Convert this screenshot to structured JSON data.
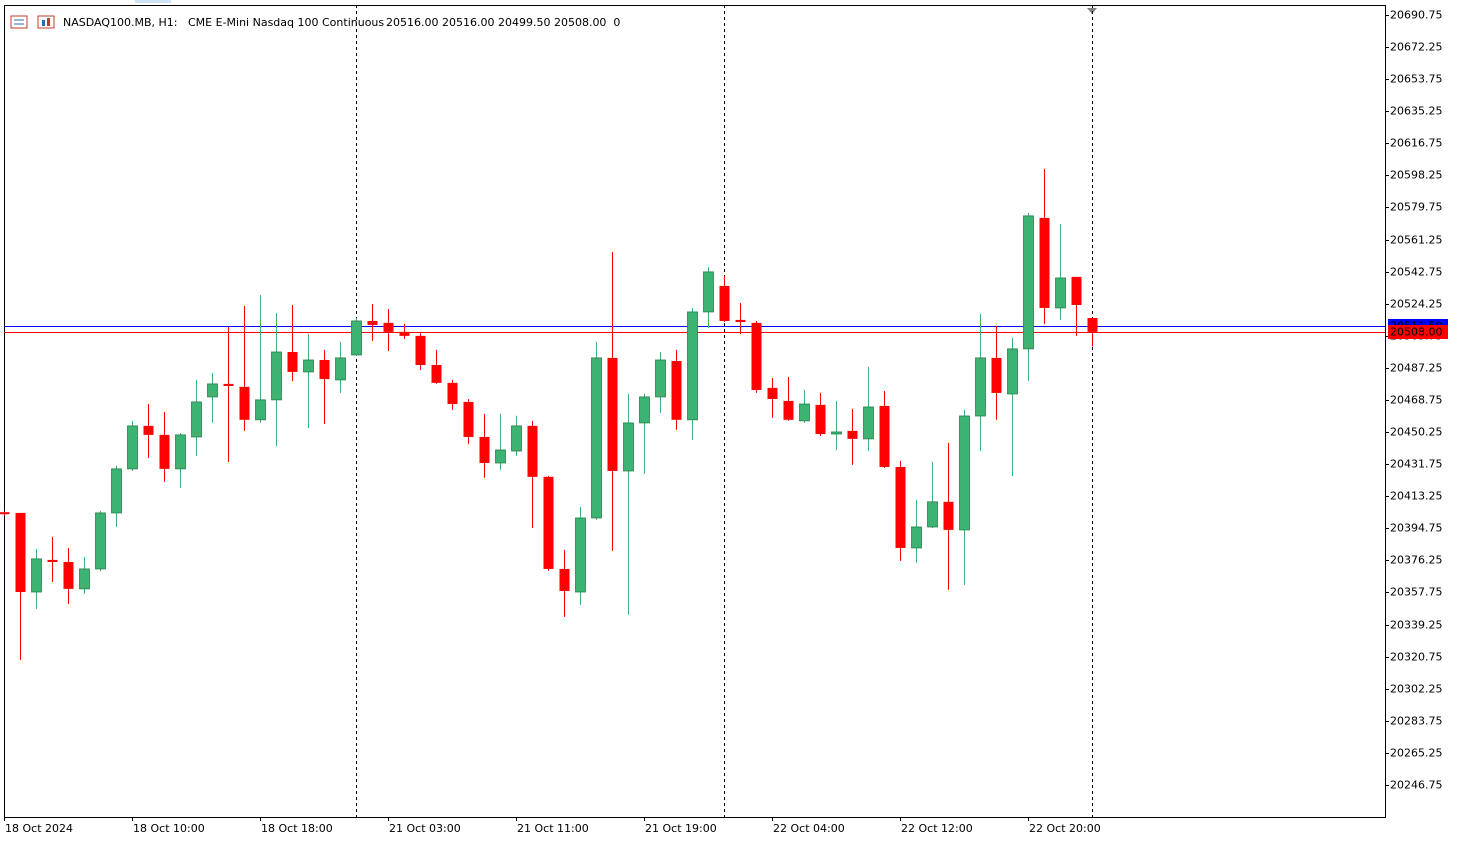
{
  "chart_data": {
    "type": "candlestick",
    "symbol": "NASDAQ100.MB, H1:",
    "description": "CME E-Mini Nasdaq 100 Continuous",
    "info": "20516.00 20516.00 20499.50 20508.00  0",
    "categories": [
      "18 Oct 2024",
      null,
      null,
      null,
      null,
      null,
      null,
      null,
      "18 Oct 10:00",
      null,
      null,
      null,
      null,
      null,
      null,
      null,
      "18 Oct 18:00",
      null,
      null,
      null,
      null,
      null,
      null,
      null,
      "21 Oct 03:00",
      null,
      null,
      null,
      null,
      null,
      null,
      null,
      "21 Oct 11:00",
      null,
      null,
      null,
      null,
      null,
      null,
      null,
      "21 Oct 19:00",
      null,
      null,
      null,
      null,
      null,
      null,
      null,
      "22 Oct 04:00",
      null,
      null,
      null,
      null,
      null,
      null,
      null,
      "22 Oct 12:00",
      null,
      null,
      null,
      null,
      null,
      null,
      null,
      "22 Oct 20:00",
      null,
      null,
      null,
      null
    ],
    "open": [
      20404,
      20403.6,
      20358,
      20376.5,
      20375.3,
      20359.8,
      20371.3,
      20403.6,
      20429,
      20453.8,
      20448.6,
      20429,
      20447.4,
      20470.5,
      20478,
      20476.3,
      20457.3,
      20468.8,
      20496.4,
      20484.9,
      20491.8,
      20480.3,
      20494.7,
      20514.3,
      20513.2,
      20508,
      20505.7,
      20488.9,
      20478.6,
      20467.6,
      20447.4,
      20432.4,
      20439.3,
      20453.8,
      20424.4,
      20371.3,
      20358,
      20400.7,
      20493,
      20427.8,
      20455.5,
      20470.5,
      20491.2,
      20457.3,
      20519.5,
      20534.5,
      20514.9,
      20513.2,
      20475.7,
      20468.2,
      20456.7,
      20465.9,
      20449.1,
      20450.9,
      20446.3,
      20465.3,
      20430.1,
      20383.4,
      20395.5,
      20410,
      20393.8,
      20459.5,
      20493,
      20472.2,
      20498.2,
      20573.7,
      20521.8,
      20539.7,
      20516
    ],
    "high": [
      20404.5,
      20403.6,
      20382.8,
      20389.8,
      20383.4,
      20378.2,
      20404.8,
      20430.7,
      20456.7,
      20466.4,
      20461.8,
      20449.7,
      20480.3,
      20484.3,
      20510.9,
      20523,
      20529.3,
      20518.9,
      20523.5,
      20506.8,
      20497.6,
      20502.2,
      20516,
      20524.1,
      20521.2,
      20512.6,
      20507.4,
      20497.6,
      20480.3,
      20469.3,
      20460.7,
      20460.7,
      20459.6,
      20456.7,
      20425,
      20382.3,
      20407.1,
      20502.2,
      20554.1,
      20472.2,
      20472.2,
      20496.4,
      20497.6,
      20521.8,
      20545.4,
      20540.2,
      20524.7,
      20514.3,
      20481.4,
      20482,
      20474.5,
      20472.8,
      20468.2,
      20463.6,
      20487.8,
      20474,
      20433.6,
      20411.1,
      20433,
      20443.9,
      20463,
      20518.3,
      20511.4,
      20504.5,
      20576.6,
      20602,
      20570.2,
      20539.7,
      20516
    ],
    "low": [
      20402,
      20318.8,
      20348.2,
      20363.8,
      20351.1,
      20356.9,
      20370,
      20395.5,
      20427.8,
      20435.3,
      20421.5,
      20418,
      20436.5,
      20455.5,
      20433,
      20450.9,
      20455.5,
      20442.2,
      20479.7,
      20452.6,
      20454.9,
      20472.8,
      20494.1,
      20502.8,
      20497,
      20503.9,
      20486,
      20478,
      20463,
      20443.4,
      20423.8,
      20428.4,
      20436.5,
      20394.9,
      20370.2,
      20343.6,
      20350.5,
      20399.6,
      20381.7,
      20344.8,
      20426.1,
      20461.2,
      20451.5,
      20445.7,
      20510.3,
      20513.7,
      20506.8,
      20472.8,
      20458.4,
      20456.7,
      20455.5,
      20448,
      20439.9,
      20431.3,
      20439.3,
      20429.6,
      20375.9,
      20374.8,
      20394.9,
      20359.2,
      20362.1,
      20439.3,
      20457.3,
      20424.9,
      20479.7,
      20512.6,
      20514.9,
      20505.7,
      20499.5
    ],
    "close": [
      20403,
      20358,
      20377.1,
      20375.3,
      20359.8,
      20371.3,
      20403.6,
      20429,
      20453.8,
      20448.6,
      20429,
      20448.6,
      20467.6,
      20478,
      20476.8,
      20457.3,
      20468.8,
      20496.4,
      20484.9,
      20491.8,
      20480.8,
      20493,
      20514.3,
      20512,
      20508,
      20505.7,
      20488.9,
      20478.6,
      20466.4,
      20447.4,
      20432.4,
      20439.9,
      20453.8,
      20424.4,
      20371.3,
      20358.6,
      20400.7,
      20493,
      20427.8,
      20455.5,
      20470.5,
      20491.8,
      20457.3,
      20519.5,
      20542.6,
      20514.3,
      20513.7,
      20474.5,
      20469.3,
      20457.3,
      20466.4,
      20449.1,
      20450.3,
      20446.3,
      20464.7,
      20430.1,
      20383.4,
      20395.5,
      20410,
      20393.8,
      20459.5,
      20493,
      20472.8,
      20498.2,
      20574.9,
      20521.8,
      20539.1,
      20523.5,
      20508
    ],
    "up_color": "#3cb371",
    "down_color": "#ff0000",
    "ylim": [
      20228.25,
      20696.5
    ],
    "yticks": [
      20690.75,
      20672.25,
      20653.75,
      20635.25,
      20616.75,
      20598.25,
      20579.75,
      20561.25,
      20542.75,
      20524.25,
      20505.75,
      20487.25,
      20468.75,
      20450.25,
      20431.75,
      20413.25,
      20394.75,
      20376.25,
      20357.75,
      20339.25,
      20320.75,
      20302.25,
      20283.75,
      20265.25,
      20246.75
    ],
    "price_lines": [
      {
        "value": 20511.5,
        "label": "20511.50",
        "color": "#0000ff"
      },
      {
        "value": 20508,
        "label": "20508.00",
        "color": "#ff0000"
      }
    ]
  }
}
